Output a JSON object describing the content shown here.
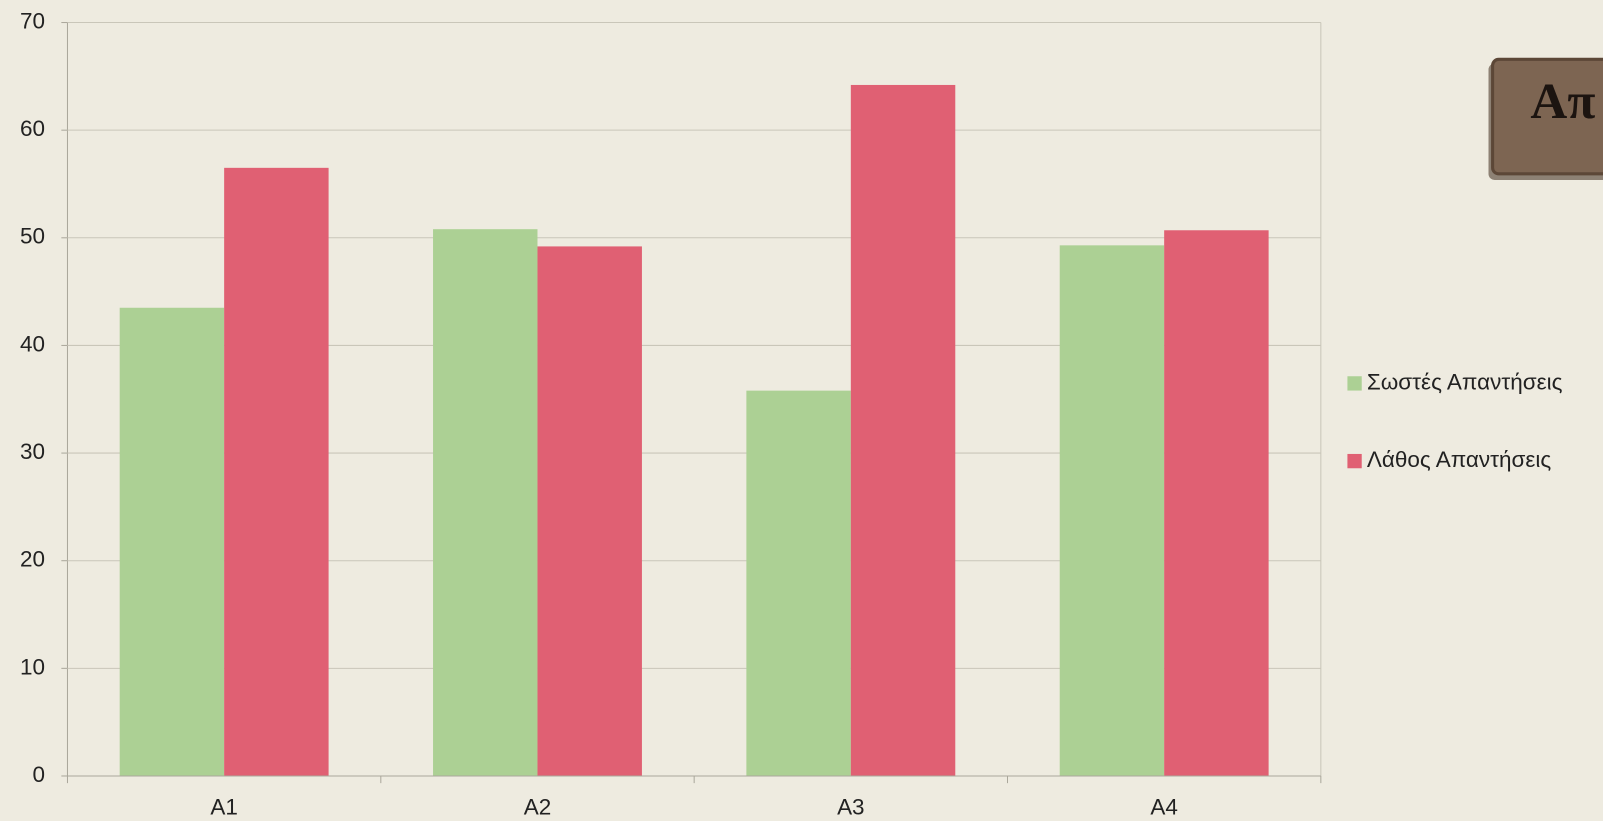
{
  "chart_data": {
    "type": "bar",
    "title": "Απ",
    "categories": [
      "A1",
      "A2",
      "A3",
      "A4"
    ],
    "series": [
      {
        "name": "Σωστές Απαντήσεις",
        "color": "#acd094",
        "values": [
          43.5,
          50.8,
          35.8,
          49.3
        ]
      },
      {
        "name": "Λάθος Απαντήσεις",
        "color": "#e06073",
        "values": [
          56.5,
          49.2,
          64.2,
          50.7
        ]
      }
    ],
    "ylim": [
      0,
      70
    ],
    "yticks": [
      0,
      10,
      20,
      30,
      40,
      50,
      60,
      70
    ],
    "grid": true,
    "legend": "right"
  }
}
